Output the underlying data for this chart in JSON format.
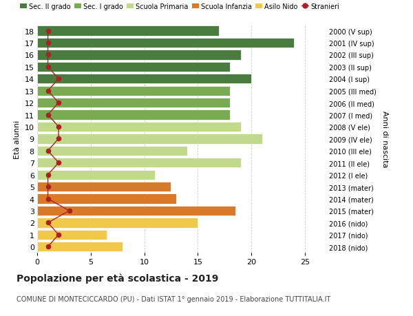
{
  "ages": [
    18,
    17,
    16,
    15,
    14,
    13,
    12,
    11,
    10,
    9,
    8,
    7,
    6,
    5,
    4,
    3,
    2,
    1,
    0
  ],
  "years": [
    "2000 (V sup)",
    "2001 (IV sup)",
    "2002 (III sup)",
    "2003 (II sup)",
    "2004 (I sup)",
    "2005 (III med)",
    "2006 (II med)",
    "2007 (I med)",
    "2008 (V ele)",
    "2009 (IV ele)",
    "2010 (III ele)",
    "2011 (II ele)",
    "2012 (I ele)",
    "2013 (mater)",
    "2014 (mater)",
    "2015 (mater)",
    "2016 (nido)",
    "2017 (nido)",
    "2018 (nido)"
  ],
  "bar_values": [
    17,
    24,
    19,
    18,
    20,
    18,
    18,
    18,
    19,
    21,
    14,
    19,
    11,
    12.5,
    13,
    18.5,
    15,
    6.5,
    8
  ],
  "bar_colors": [
    "#4a7c3f",
    "#4a7c3f",
    "#4a7c3f",
    "#4a7c3f",
    "#4a7c3f",
    "#7aab52",
    "#7aab52",
    "#7aab52",
    "#c0d98a",
    "#c0d98a",
    "#c0d98a",
    "#c0d98a",
    "#c0d98a",
    "#d97a2a",
    "#d97a2a",
    "#d97a2a",
    "#f0c84a",
    "#f0c84a",
    "#f0c84a"
  ],
  "stranieri_values": [
    1,
    1,
    1,
    1,
    2,
    1,
    2,
    1,
    2,
    2,
    1,
    2,
    1,
    1,
    1,
    3,
    1,
    2,
    1
  ],
  "stranieri_color": "#aa2222",
  "legend_labels": [
    "Sec. II grado",
    "Sec. I grado",
    "Scuola Primaria",
    "Scuola Infanzia",
    "Asilo Nido",
    "Stranieri"
  ],
  "legend_colors": [
    "#4a7c3f",
    "#7aab52",
    "#c0d98a",
    "#d97a2a",
    "#f0c84a",
    "#aa2222"
  ],
  "ylabel_left": "Età alunni",
  "ylabel_right": "Anni di nascita",
  "title": "Popolazione per età scolastica - 2019",
  "subtitle": "COMUNE DI MONTECICCARDO (PU) - Dati ISTAT 1° gennaio 2019 - Elaborazione TUTTITALIA.IT",
  "xlim": [
    0,
    27
  ],
  "xticks": [
    0,
    5,
    10,
    15,
    20,
    25
  ],
  "background_color": "#ffffff",
  "grid_color": "#cccccc"
}
